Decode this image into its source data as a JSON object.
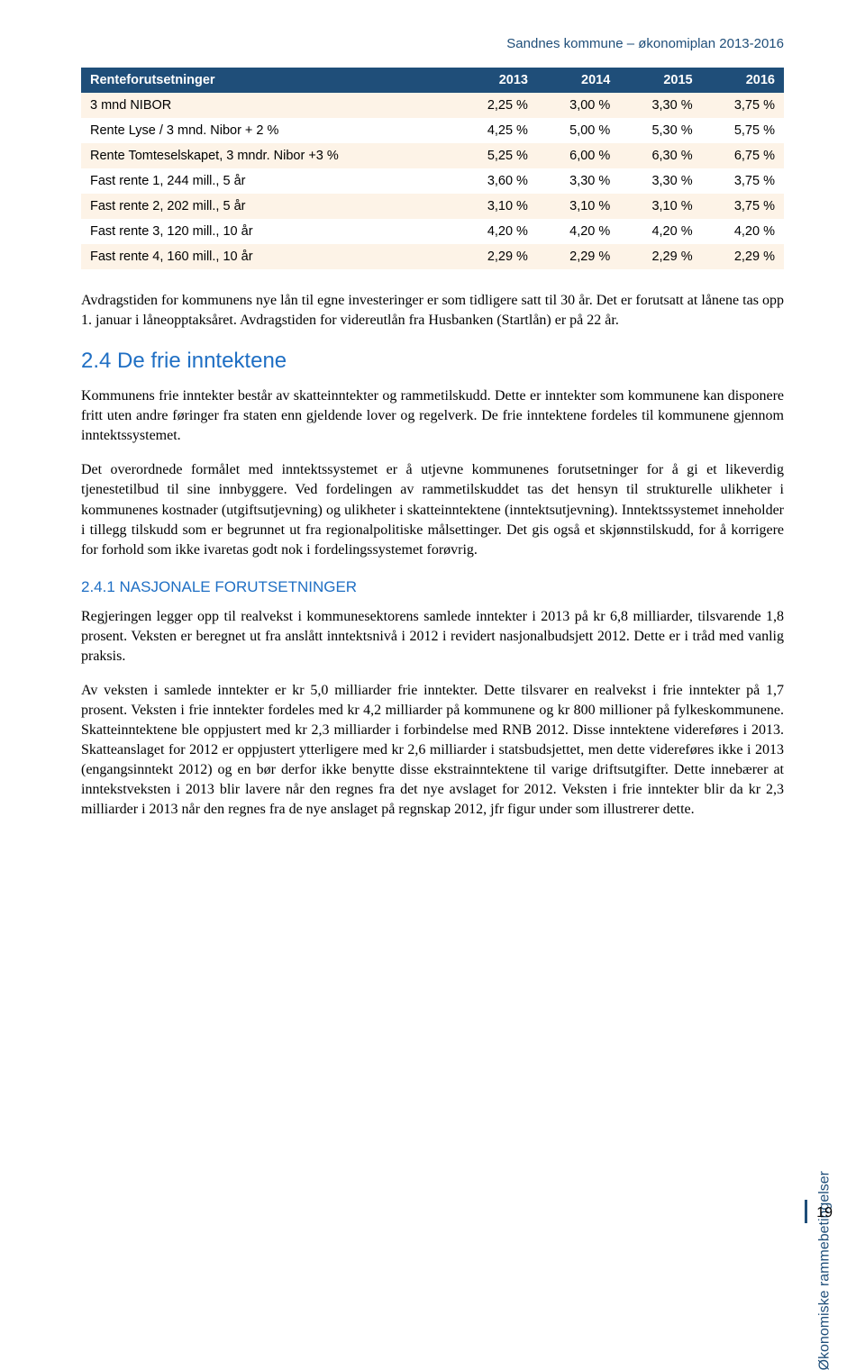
{
  "header": {
    "title": "Sandnes kommune – økonomiplan 2013-2016"
  },
  "table": {
    "columns": [
      "Renteforutsetninger",
      "2013",
      "2014",
      "2015",
      "2016"
    ],
    "rows": [
      [
        "3 mnd NIBOR",
        "2,25 %",
        "3,00 %",
        "3,30 %",
        "3,75 %"
      ],
      [
        "Rente Lyse / 3 mnd. Nibor + 2 %",
        "4,25 %",
        "5,00 %",
        "5,30 %",
        "5,75 %"
      ],
      [
        "Rente Tomteselskapet, 3 mndr. Nibor +3 %",
        "5,25 %",
        "6,00 %",
        "6,30 %",
        "6,75 %"
      ],
      [
        "Fast rente 1, 244 mill., 5 år",
        "3,60 %",
        "3,30 %",
        "3,30 %",
        "3,75 %"
      ],
      [
        "Fast rente 2, 202 mill., 5 år",
        "3,10 %",
        "3,10 %",
        "3,10 %",
        "3,75 %"
      ],
      [
        "Fast rente 3, 120 mill., 10 år",
        "4,20 %",
        "4,20 %",
        "4,20 %",
        "4,20 %"
      ],
      [
        "Fast rente 4, 160 mill., 10 år",
        "2,29 %",
        "2,29 %",
        "2,29 %",
        "2,29 %"
      ]
    ]
  },
  "paragraphs": {
    "p1": "Avdragstiden for kommunens nye lån til egne investeringer er som tidligere satt til 30 år. Det er forutsatt at lånene tas opp 1. januar i låneopptaksåret. Avdragstiden for videreutlån fra Husbanken (Startlån) er på 22 år.",
    "h2": "2.4 De frie inntektene",
    "p2": "Kommunens frie inntekter består av skatteinntekter og rammetilskudd. Dette er inntekter som kommunene kan disponere fritt uten andre føringer fra staten enn gjeldende lover og regelverk. De frie inntektene fordeles til kommunene gjennom inntektssystemet.",
    "p3": "Det overordnede formålet med inntektssystemet er å utjevne kommunenes forutsetninger for å gi et likeverdig tjenestetilbud til sine innbyggere. Ved fordelingen av rammetilskuddet tas det hensyn til strukturelle ulikheter i kommunenes kostnader (utgiftsutjevning) og ulikheter i skatteinntektene (inntektsutjevning). Inntektssystemet inneholder i tillegg tilskudd som er begrunnet ut fra regionalpolitiske målsettinger. Det gis også et skjønnstilskudd, for å korrigere for forhold som ikke ivaretas godt nok i fordelingssystemet forøvrig.",
    "h3": "2.4.1 NASJONALE FORUTSETNINGER",
    "p4": "Regjeringen legger opp til realvekst i kommunesektorens samlede inntekter i 2013 på kr 6,8 milliarder, tilsvarende 1,8 prosent. Veksten er beregnet ut fra anslått inntektsnivå i 2012 i revidert nasjonalbudsjett 2012. Dette er i tråd med vanlig praksis.",
    "p5": "Av veksten i samlede inntekter er kr 5,0 milliarder frie inntekter. Dette tilsvarer en realvekst i frie inntekter på 1,7 prosent. Veksten i frie inntekter fordeles med kr 4,2 milliarder på kommunene og kr 800 millioner på fylkeskommunene. Skatteinntektene ble oppjustert med kr 2,3 milliarder i forbindelse med RNB 2012. Disse inntektene videreføres i 2013. Skatteanslaget for 2012 er oppjustert ytterligere med kr 2,6 milliarder i statsbudsjettet, men dette videreføres ikke i 2013 (engangsinntekt 2012) og en bør derfor ikke benytte disse ekstrainntektene til varige driftsutgifter. Dette innebærer at inntekstveksten i 2013 blir lavere når den regnes fra det nye avslaget for 2012. Veksten i frie inntekter blir da kr 2,3 milliarder i 2013 når den regnes fra de nye anslaget på regnskap 2012, jfr figur under som illustrerer dette."
  },
  "side_label": "Økonomiske rammebetingelser",
  "page_number": "19"
}
